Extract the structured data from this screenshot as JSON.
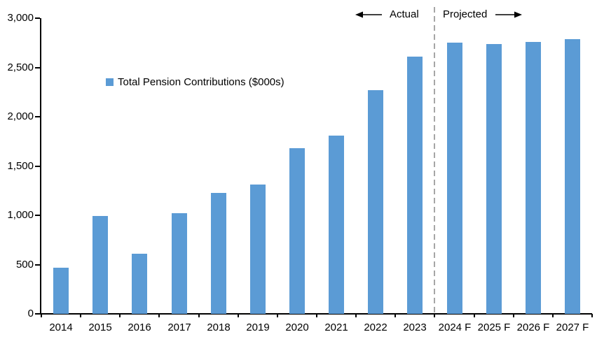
{
  "chart_data": {
    "type": "bar",
    "title": "",
    "legend": "Total Pension Contributions ($000s)",
    "categories": [
      "2014",
      "2015",
      "2016",
      "2017",
      "2018",
      "2019",
      "2020",
      "2021",
      "2022",
      "2023",
      "2024 F",
      "2025 F",
      "2026 F",
      "2027 F"
    ],
    "values": [
      470,
      990,
      610,
      1020,
      1230,
      1310,
      1680,
      1810,
      2270,
      2610,
      2750,
      2740,
      2760,
      2790
    ],
    "ylim": [
      0,
      3000
    ],
    "y_tick_step": 500,
    "y_tick_labels": [
      "0",
      "500",
      "1,000",
      "1,500",
      "2,000",
      "2,500",
      "3,000"
    ],
    "annotations": {
      "left_section": "Actual",
      "right_section": "Projected"
    },
    "divider_after_index": 9,
    "bar_color": "#5B9BD5",
    "axis_color": "#000000",
    "divider_color": "#A6A6A6",
    "legend_position": "inside-upper-left",
    "grid": false
  }
}
